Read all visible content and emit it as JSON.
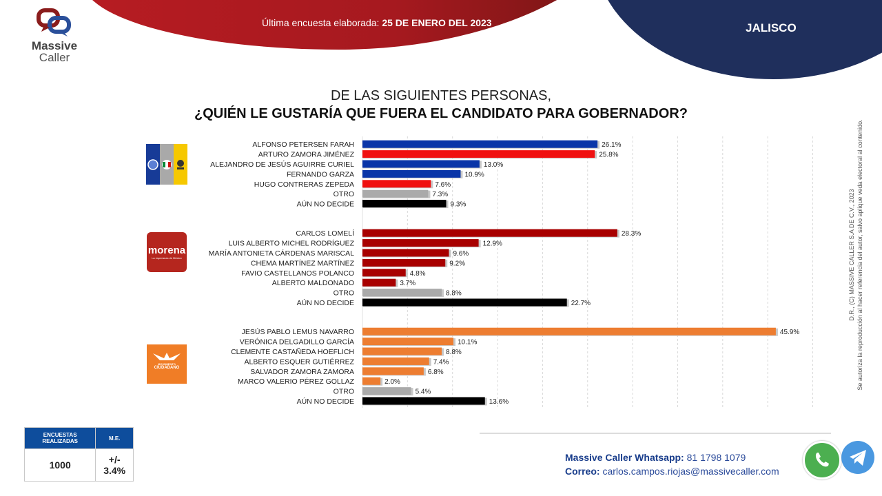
{
  "header": {
    "brand_line1": "Massive",
    "brand_line2": "Caller",
    "survey_label": "Última encuesta elaborada:",
    "survey_date": "25 DE ENERO DEL 2023",
    "state": "JALISCO"
  },
  "titles": {
    "line1": "DE LAS SIGUIENTES PERSONAS,",
    "line2": "¿QUIÉN LE GUSTARÍA QUE FUERA EL CANDIDATO PARA GOBERNADOR?"
  },
  "party_logos": {
    "pan_pri_prd": "PAN-PRI-PRD coalition logo",
    "morena_name": "morena",
    "morena_sub": "La esperanza de México",
    "mc_line1": "MOVIMIENTO",
    "mc_line2": "CIUDADANO"
  },
  "colors": {
    "pan_blue": "#0a35a8",
    "pri_red": "#f01010",
    "morena_red": "#a80000",
    "mc_orange": "#ed7d31",
    "otro_gray": "#aaaaaa",
    "undecided_black": "#000000"
  },
  "chart_data": {
    "type": "bar",
    "orientation": "horizontal",
    "title": "¿QUIÉN LE GUSTARÍA QUE FUERA EL CANDIDATO PARA GOBERNADOR?",
    "xlabel": "",
    "ylabel": "",
    "xlim": [
      0,
      50
    ],
    "grid": true,
    "value_suffix": "%",
    "groups": [
      {
        "party": "PAN-PRI-PRD",
        "categories": [
          "ALFONSO PETERSEN FARAH",
          "ARTURO ZAMORA JIMÉNEZ",
          "ALEJANDRO DE JESÚS AGUIRRE CURIEL",
          "FERNANDO GARZA",
          "HUGO CONTRERAS ZEPEDA",
          "OTRO",
          "AÚN NO DECIDE"
        ],
        "values": [
          26.1,
          25.8,
          13.0,
          10.9,
          7.6,
          7.3,
          9.3
        ],
        "labels": [
          "26.1%",
          "25.8%",
          "13.0%",
          "10.9%",
          "7.6%",
          "7.3%",
          "9.3%"
        ],
        "colors": [
          "#0a35a8",
          "#f01010",
          "#0a35a8",
          "#0a35a8",
          "#f01010",
          "#aaaaaa",
          "#000000"
        ]
      },
      {
        "party": "MORENA",
        "categories": [
          "CARLOS LOMELÍ",
          "LUIS ALBERTO MICHEL RODRÍGUEZ",
          "MARÍA ANTONIETA CÁRDENAS MARISCAL",
          "CHEMA MARTÍNEZ MARTÍNEZ",
          "FAVIO CASTELLANOS POLANCO",
          "ALBERTO MALDONADO",
          "OTRO",
          "AÚN NO DECIDE"
        ],
        "values": [
          28.3,
          12.9,
          9.6,
          9.2,
          4.8,
          3.7,
          8.8,
          22.7
        ],
        "labels": [
          "28.3%",
          "12.9%",
          "9.6%",
          "9.2%",
          "4.8%",
          "3.7%",
          "8.8%",
          "22.7%"
        ],
        "colors": [
          "#a80000",
          "#a80000",
          "#a80000",
          "#a80000",
          "#a80000",
          "#a80000",
          "#aaaaaa",
          "#000000"
        ]
      },
      {
        "party": "MOVIMIENTO CIUDADANO",
        "categories": [
          "JESÚS PABLO LEMUS NAVARRO",
          "VERÓNICA DELGADILLO GARCÍA",
          "CLEMENTE CASTAÑEDA HOEFLICH",
          "ALBERTO ESQUER GUTIÉRREZ",
          "SALVADOR ZAMORA ZAMORA",
          "MARCO VALERIO PÉREZ GOLLAZ",
          "OTRO",
          "AÚN NO DECIDE"
        ],
        "values": [
          45.9,
          10.1,
          8.8,
          7.4,
          6.8,
          2.0,
          5.4,
          13.6
        ],
        "labels": [
          "45.9%",
          "10.1%",
          "8.8%",
          "7.4%",
          "6.8%",
          "2.0%",
          "5.4%",
          "13.6%"
        ],
        "colors": [
          "#ed7d31",
          "#ed7d31",
          "#ed7d31",
          "#ed7d31",
          "#ed7d31",
          "#ed7d31",
          "#aaaaaa",
          "#000000"
        ]
      }
    ]
  },
  "info_table": {
    "col1_header": "ENCUESTAS REALIZADAS",
    "col2_header": "M.E.",
    "col1_value": "1000",
    "col2_value": "+/- 3.4%"
  },
  "contact": {
    "whatsapp_label": "Massive Caller Whatsapp:",
    "whatsapp_value": "81 1798 1079",
    "email_label": "Correo:",
    "email_value": "carlos.campos.riojas@massivecaller.com"
  },
  "copyright": {
    "line1": "D.R., (C) MASSIVE CALLER S.A DE C.V., 2023",
    "line2": "Se autoriza la reproducción al hacer referencia del autor, salvo aplique veda electoral al contenido."
  }
}
